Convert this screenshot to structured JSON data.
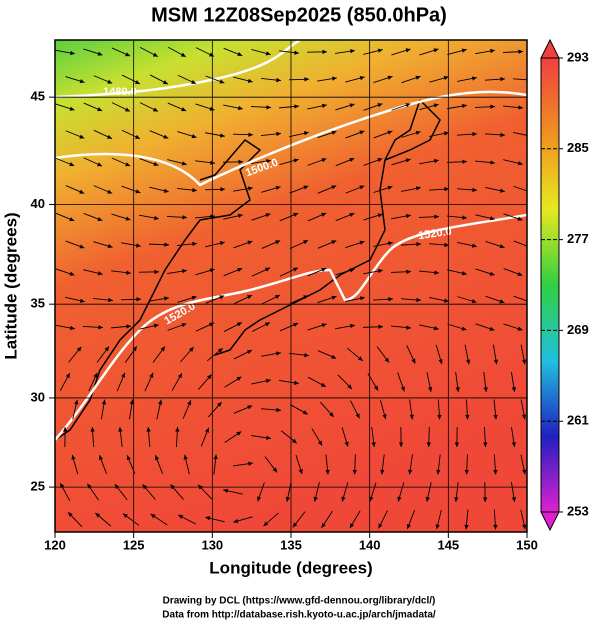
{
  "chart_data": {
    "type": "map",
    "projection": "mercator",
    "title": "MSM 12Z08Sep2025 (850.0hPa)",
    "x_label": "Longitude (degrees)",
    "y_label": "Latitude  (degrees)",
    "xlim": [
      120,
      150
    ],
    "xticks": [
      120,
      125,
      130,
      135,
      140,
      145,
      150
    ],
    "ylim": [
      22.4,
      47.5
    ],
    "yticks": [
      25,
      30,
      35,
      40,
      45
    ],
    "grid": true,
    "colorbar": {
      "lim": [
        253,
        293
      ],
      "ticks": [
        253,
        261,
        269,
        277,
        285,
        293
      ],
      "colors": [
        "#e020d0",
        "#2020c0",
        "#20c0e0",
        "#30d040",
        "#e8e820",
        "#f09020",
        "#f04040"
      ]
    },
    "contour_labels": [
      "1480.0",
      "1500.0",
      "1520.0",
      "1520.0"
    ],
    "credits": [
      "Drawing by DCL (https://www.gfd-dennou.org/library/dcl/)",
      "Data from http://database.rish.kyoto-u.ac.jp/arch/jmadata/"
    ]
  }
}
